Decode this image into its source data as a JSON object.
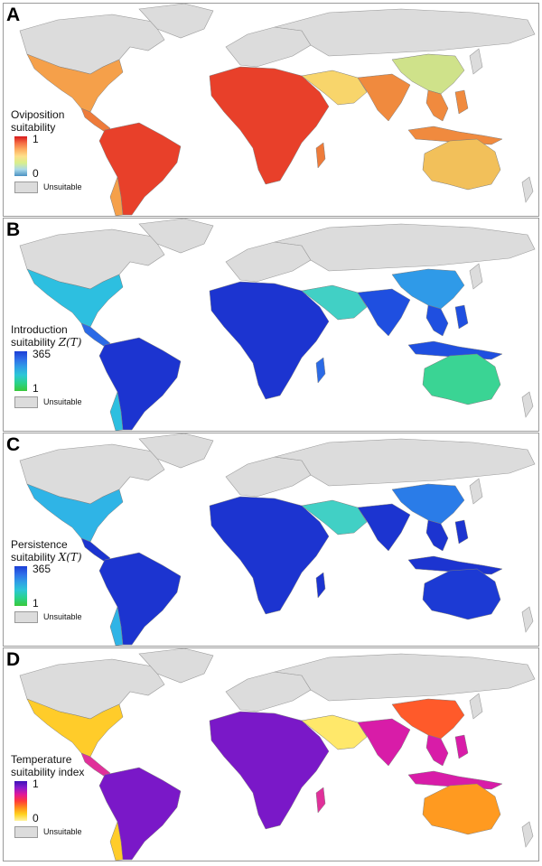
{
  "colors": {
    "unsuitable": "#dcdcdc",
    "border": "#9a9a9a"
  },
  "panels": [
    {
      "id": "A",
      "legend_line1": "Oviposition",
      "legend_line2": "suitability",
      "legend_math": "",
      "max_label": "1",
      "min_label": "0",
      "unsuitable_label": "Unsuitable",
      "ramp": [
        "#d7191c",
        "#f46d43",
        "#fdae61",
        "#fee08b",
        "#d9ef8b",
        "#abd9e9",
        "#4a90c2"
      ],
      "regions": [
        "#f5a04a",
        "#e8402a",
        "#ee7b3a",
        "#f8d56b",
        "#cfe28a",
        "#f08a3e",
        "#f2c05a"
      ]
    },
    {
      "id": "B",
      "legend_line1": "Introduction",
      "legend_line2": "suitability ",
      "legend_math": "Z(T)",
      "max_label": "365",
      "min_label": "1",
      "unsuitable_label": "Unsuitable",
      "ramp": [
        "#1c3ed6",
        "#2f6ee8",
        "#2f9fe6",
        "#2cc7d6",
        "#2ad28b",
        "#39c83a"
      ],
      "regions": [
        "#2dbfe0",
        "#1c34d0",
        "#2b6ae6",
        "#41d0c5",
        "#2f9ae8",
        "#1f4fe0",
        "#3ad494"
      ]
    },
    {
      "id": "C",
      "legend_line1": "Persistence",
      "legend_line2": "suitability ",
      "legend_math": "X(T)",
      "max_label": "365",
      "min_label": "1",
      "unsuitable_label": "Unsuitable",
      "ramp": [
        "#1c3ed6",
        "#2f6ee8",
        "#2f9fe6",
        "#2cc7d6",
        "#2ad28b",
        "#39c83a"
      ],
      "regions": [
        "#2fb4e6",
        "#1c34d0",
        "#1c34d0",
        "#41d0c5",
        "#2a7ce8",
        "#1c34d0",
        "#1c3ad4"
      ]
    },
    {
      "id": "D",
      "legend_line1": "Temperature",
      "legend_line2": "suitability index",
      "legend_math": "",
      "max_label": "1",
      "min_label": "0",
      "unsuitable_label": "Unsuitable",
      "ramp": [
        "#3b12b8",
        "#8a1ccc",
        "#e0189a",
        "#ff3a3a",
        "#ff8c1a",
        "#ffd21f",
        "#fff3a0"
      ],
      "regions": [
        "#ffcc2a",
        "#7a18c8",
        "#e0309a",
        "#ffe86a",
        "#ff5a2a",
        "#d81ca8",
        "#ff9a20"
      ]
    }
  ]
}
